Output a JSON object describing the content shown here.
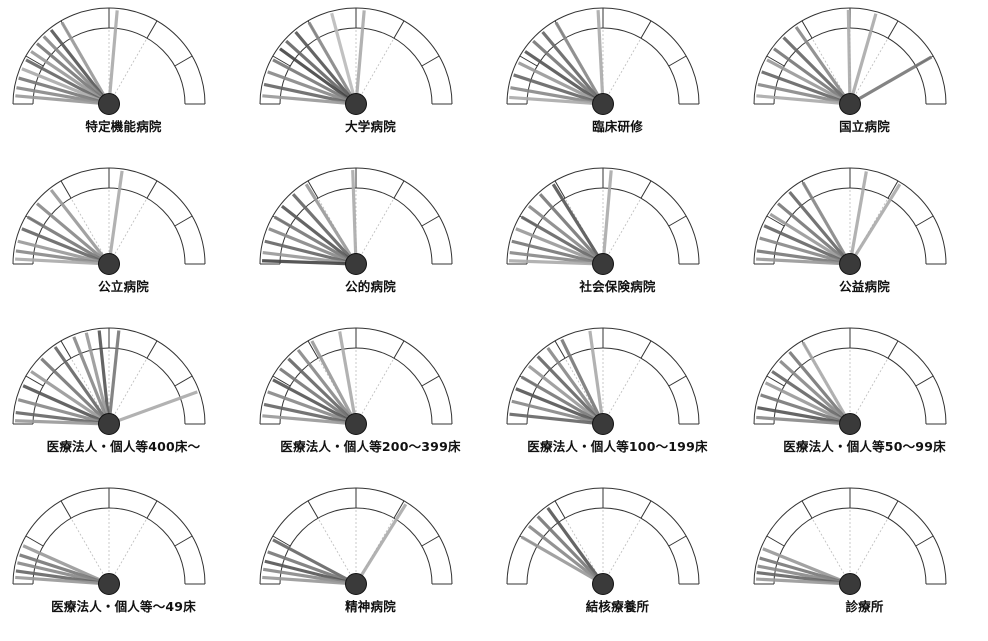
{
  "chart_data": [
    {
      "type": "gauge",
      "title": "特定機能病院",
      "needles": [
        {
          "angle": 95,
          "shade": "#aaa"
        },
        {
          "angle": 60,
          "shade": "#999"
        },
        {
          "angle": 52,
          "shade": "#555"
        },
        {
          "angle": 46,
          "shade": "#888"
        },
        {
          "angle": 40,
          "shade": "#777"
        },
        {
          "angle": 34,
          "shade": "#999"
        },
        {
          "angle": 28,
          "shade": "#666"
        },
        {
          "angle": 22,
          "shade": "#aaa"
        },
        {
          "angle": 16,
          "shade": "#777"
        },
        {
          "angle": 10,
          "shade": "#888"
        },
        {
          "angle": 5,
          "shade": "#999"
        }
      ]
    },
    {
      "type": "gauge",
      "title": "大学病院",
      "needles": [
        {
          "angle": 95,
          "shade": "#aaa"
        },
        {
          "angle": 75,
          "shade": "#bbb"
        },
        {
          "angle": 60,
          "shade": "#888"
        },
        {
          "angle": 50,
          "shade": "#555"
        },
        {
          "angle": 42,
          "shade": "#666"
        },
        {
          "angle": 36,
          "shade": "#444"
        },
        {
          "angle": 28,
          "shade": "#777"
        },
        {
          "angle": 20,
          "shade": "#888"
        },
        {
          "angle": 12,
          "shade": "#666"
        },
        {
          "angle": 5,
          "shade": "#999"
        }
      ]
    },
    {
      "type": "gauge",
      "title": "臨床研修",
      "needles": [
        {
          "angle": 87,
          "shade": "#aaa"
        },
        {
          "angle": 60,
          "shade": "#888"
        },
        {
          "angle": 50,
          "shade": "#666"
        },
        {
          "angle": 42,
          "shade": "#777"
        },
        {
          "angle": 34,
          "shade": "#555"
        },
        {
          "angle": 26,
          "shade": "#999"
        },
        {
          "angle": 18,
          "shade": "#666"
        },
        {
          "angle": 10,
          "shade": "#888"
        },
        {
          "angle": 4,
          "shade": "#aaa"
        }
      ]
    },
    {
      "type": "gauge",
      "title": "国立病院",
      "needles": [
        {
          "angle": 150,
          "shade": "#777"
        },
        {
          "angle": 106,
          "shade": "#aaa"
        },
        {
          "angle": 89,
          "shade": "#aaa"
        },
        {
          "angle": 55,
          "shade": "#888"
        },
        {
          "angle": 45,
          "shade": "#666"
        },
        {
          "angle": 36,
          "shade": "#777"
        },
        {
          "angle": 28,
          "shade": "#999"
        },
        {
          "angle": 20,
          "shade": "#666"
        },
        {
          "angle": 12,
          "shade": "#888"
        },
        {
          "angle": 5,
          "shade": "#aaa"
        }
      ]
    },
    {
      "type": "gauge",
      "title": "公立病院",
      "needles": [
        {
          "angle": 98,
          "shade": "#aaa"
        },
        {
          "angle": 52,
          "shade": "#999"
        },
        {
          "angle": 40,
          "shade": "#888"
        },
        {
          "angle": 30,
          "shade": "#777"
        },
        {
          "angle": 22,
          "shade": "#666"
        },
        {
          "angle": 14,
          "shade": "#999"
        },
        {
          "angle": 8,
          "shade": "#888"
        },
        {
          "angle": 3,
          "shade": "#aaa"
        }
      ]
    },
    {
      "type": "gauge",
      "title": "公的病院",
      "needles": [
        {
          "angle": 88,
          "shade": "#aaa"
        },
        {
          "angle": 58,
          "shade": "#999"
        },
        {
          "angle": 48,
          "shade": "#666"
        },
        {
          "angle": 38,
          "shade": "#555"
        },
        {
          "angle": 30,
          "shade": "#777"
        },
        {
          "angle": 22,
          "shade": "#888"
        },
        {
          "angle": 14,
          "shade": "#666"
        },
        {
          "angle": 7,
          "shade": "#999"
        },
        {
          "angle": 2,
          "shade": "#444"
        }
      ]
    },
    {
      "type": "gauge",
      "title": "社会保険病院",
      "needles": [
        {
          "angle": 95,
          "shade": "#aaa"
        },
        {
          "angle": 58,
          "shade": "#555"
        },
        {
          "angle": 48,
          "shade": "#777"
        },
        {
          "angle": 38,
          "shade": "#888"
        },
        {
          "angle": 30,
          "shade": "#666"
        },
        {
          "angle": 22,
          "shade": "#999"
        },
        {
          "angle": 14,
          "shade": "#777"
        },
        {
          "angle": 7,
          "shade": "#888"
        },
        {
          "angle": 2,
          "shade": "#aaa"
        }
      ]
    },
    {
      "type": "gauge",
      "title": "公益病院",
      "needles": [
        {
          "angle": 122,
          "shade": "#aaa"
        },
        {
          "angle": 100,
          "shade": "#aaa"
        },
        {
          "angle": 60,
          "shade": "#888"
        },
        {
          "angle": 50,
          "shade": "#666"
        },
        {
          "angle": 40,
          "shade": "#777"
        },
        {
          "angle": 32,
          "shade": "#999"
        },
        {
          "angle": 24,
          "shade": "#666"
        },
        {
          "angle": 16,
          "shade": "#888"
        },
        {
          "angle": 8,
          "shade": "#777"
        },
        {
          "angle": 3,
          "shade": "#999"
        }
      ]
    },
    {
      "type": "gauge",
      "title": "医療法人・個人等400床～",
      "needles": [
        {
          "angle": 160,
          "shade": "#aaa"
        },
        {
          "angle": 96,
          "shade": "#777"
        },
        {
          "angle": 84,
          "shade": "#555"
        },
        {
          "angle": 76,
          "shade": "#999"
        },
        {
          "angle": 68,
          "shade": "#888"
        },
        {
          "angle": 55,
          "shade": "#666"
        },
        {
          "angle": 44,
          "shade": "#777"
        },
        {
          "angle": 34,
          "shade": "#999"
        },
        {
          "angle": 24,
          "shade": "#555"
        },
        {
          "angle": 15,
          "shade": "#888"
        },
        {
          "angle": 7,
          "shade": "#666"
        },
        {
          "angle": 2,
          "shade": "#999"
        }
      ]
    },
    {
      "type": "gauge",
      "title": "医療法人・個人等200～399床",
      "needles": [
        {
          "angle": 80,
          "shade": "#aaa"
        },
        {
          "angle": 62,
          "shade": "#999"
        },
        {
          "angle": 52,
          "shade": "#888"
        },
        {
          "angle": 44,
          "shade": "#666"
        },
        {
          "angle": 36,
          "shade": "#777"
        },
        {
          "angle": 28,
          "shade": "#555"
        },
        {
          "angle": 20,
          "shade": "#888"
        },
        {
          "angle": 12,
          "shade": "#666"
        },
        {
          "angle": 5,
          "shade": "#999"
        }
      ]
    },
    {
      "type": "gauge",
      "title": "医療法人・個人等100～199床",
      "needles": [
        {
          "angle": 82,
          "shade": "#aaa"
        },
        {
          "angle": 64,
          "shade": "#777"
        },
        {
          "angle": 54,
          "shade": "#888"
        },
        {
          "angle": 46,
          "shade": "#666"
        },
        {
          "angle": 38,
          "shade": "#999"
        },
        {
          "angle": 30,
          "shade": "#777"
        },
        {
          "angle": 22,
          "shade": "#555"
        },
        {
          "angle": 14,
          "shade": "#888"
        },
        {
          "angle": 6,
          "shade": "#666"
        }
      ]
    },
    {
      "type": "gauge",
      "title": "医療法人・個人等50～99床",
      "needles": [
        {
          "angle": 60,
          "shade": "#aaa"
        },
        {
          "angle": 50,
          "shade": "#777"
        },
        {
          "angle": 42,
          "shade": "#888"
        },
        {
          "angle": 34,
          "shade": "#666"
        },
        {
          "angle": 26,
          "shade": "#999"
        },
        {
          "angle": 18,
          "shade": "#777"
        },
        {
          "angle": 10,
          "shade": "#555"
        },
        {
          "angle": 4,
          "shade": "#888"
        }
      ]
    },
    {
      "type": "gauge",
      "title": "医療法人・個人等～49床",
      "needles": [
        {
          "angle": 24,
          "shade": "#999"
        },
        {
          "angle": 18,
          "shade": "#777"
        },
        {
          "angle": 13,
          "shade": "#888"
        },
        {
          "angle": 8,
          "shade": "#666"
        },
        {
          "angle": 4,
          "shade": "#999"
        }
      ]
    },
    {
      "type": "gauge",
      "title": "精神病院",
      "needles": [
        {
          "angle": 122,
          "shade": "#aaa"
        },
        {
          "angle": 28,
          "shade": "#666"
        },
        {
          "angle": 20,
          "shade": "#777"
        },
        {
          "angle": 14,
          "shade": "#555"
        },
        {
          "angle": 9,
          "shade": "#888"
        },
        {
          "angle": 4,
          "shade": "#999"
        }
      ]
    },
    {
      "type": "gauge",
      "title": "結核療養所",
      "needles": [
        {
          "angle": 54,
          "shade": "#555"
        },
        {
          "angle": 46,
          "shade": "#777"
        },
        {
          "angle": 38,
          "shade": "#888"
        },
        {
          "angle": 30,
          "shade": "#999"
        }
      ]
    },
    {
      "type": "gauge",
      "title": "診療所",
      "needles": [
        {
          "angle": 22,
          "shade": "#999"
        },
        {
          "angle": 16,
          "shade": "#777"
        },
        {
          "angle": 11,
          "shade": "#888"
        },
        {
          "angle": 7,
          "shade": "#666"
        },
        {
          "angle": 3,
          "shade": "#999"
        }
      ]
    }
  ]
}
